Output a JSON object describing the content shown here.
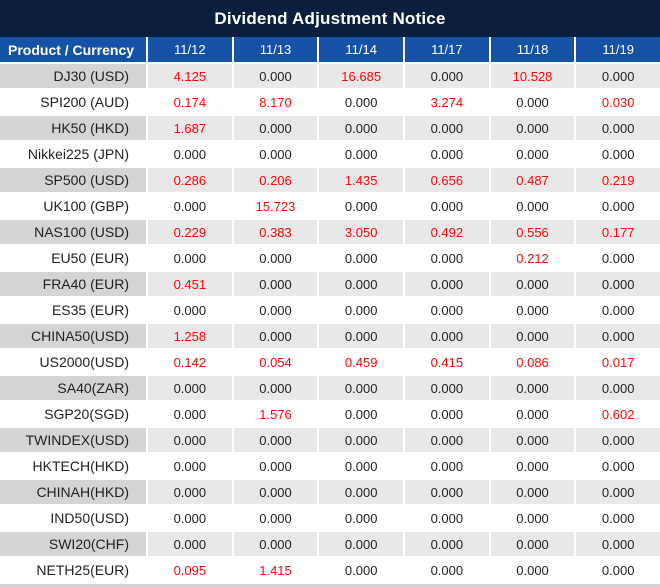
{
  "title": "Dividend Adjustment Notice",
  "columns": [
    "Product / Currency",
    "11/12",
    "11/13",
    "11/14",
    "11/17",
    "11/18",
    "11/19"
  ],
  "rows": [
    {
      "product": "DJ30 (USD)",
      "values": [
        "4.125",
        "0.000",
        "16.685",
        "0.000",
        "10.528",
        "0.000"
      ]
    },
    {
      "product": "SPI200 (AUD)",
      "values": [
        "0.174",
        "8.170",
        "0.000",
        "3.274",
        "0.000",
        "0.030"
      ]
    },
    {
      "product": "HK50 (HKD)",
      "values": [
        "1.687",
        "0.000",
        "0.000",
        "0.000",
        "0.000",
        "0.000"
      ]
    },
    {
      "product": "Nikkei225 (JPN)",
      "values": [
        "0.000",
        "0.000",
        "0.000",
        "0.000",
        "0.000",
        "0.000"
      ]
    },
    {
      "product": "SP500 (USD)",
      "values": [
        "0.286",
        "0.206",
        "1.435",
        "0.656",
        "0.487",
        "0.219"
      ]
    },
    {
      "product": "UK100 (GBP)",
      "values": [
        "0.000",
        "15.723",
        "0.000",
        "0.000",
        "0.000",
        "0.000"
      ]
    },
    {
      "product": "NAS100 (USD)",
      "values": [
        "0.229",
        "0.383",
        "3.050",
        "0.492",
        "0.556",
        "0.177"
      ]
    },
    {
      "product": "EU50 (EUR)",
      "values": [
        "0.000",
        "0.000",
        "0.000",
        "0.000",
        "0.212",
        "0.000"
      ]
    },
    {
      "product": "FRA40 (EUR)",
      "values": [
        "0.451",
        "0.000",
        "0.000",
        "0.000",
        "0.000",
        "0.000"
      ]
    },
    {
      "product": "ES35 (EUR)",
      "values": [
        "0.000",
        "0.000",
        "0.000",
        "0.000",
        "0.000",
        "0.000"
      ]
    },
    {
      "product": "CHINA50(USD)",
      "values": [
        "1.258",
        "0.000",
        "0.000",
        "0.000",
        "0.000",
        "0.000"
      ]
    },
    {
      "product": "US2000(USD)",
      "values": [
        "0.142",
        "0.054",
        "0.459",
        "0.415",
        "0.086",
        "0.017"
      ]
    },
    {
      "product": "SA40(ZAR)",
      "values": [
        "0.000",
        "0.000",
        "0.000",
        "0.000",
        "0.000",
        "0.000"
      ]
    },
    {
      "product": "SGP20(SGD)",
      "values": [
        "0.000",
        "1.576",
        "0.000",
        "0.000",
        "0.000",
        "0.602"
      ]
    },
    {
      "product": "TWINDEX(USD)",
      "values": [
        "0.000",
        "0.000",
        "0.000",
        "0.000",
        "0.000",
        "0.000"
      ]
    },
    {
      "product": "HKTECH(HKD)",
      "values": [
        "0.000",
        "0.000",
        "0.000",
        "0.000",
        "0.000",
        "0.000"
      ]
    },
    {
      "product": "CHINAH(HKD)",
      "values": [
        "0.000",
        "0.000",
        "0.000",
        "0.000",
        "0.000",
        "0.000"
      ]
    },
    {
      "product": "IND50(USD)",
      "values": [
        "0.000",
        "0.000",
        "0.000",
        "0.000",
        "0.000",
        "0.000"
      ]
    },
    {
      "product": "SWI20(CHF)",
      "values": [
        "0.000",
        "0.000",
        "0.000",
        "0.000",
        "0.000",
        "0.000"
      ]
    },
    {
      "product": "NETH25(EUR)",
      "values": [
        "0.095",
        "1.415",
        "0.000",
        "0.000",
        "0.000",
        "0.000"
      ]
    }
  ],
  "colors": {
    "title_bar_bg": "#0c1e3d",
    "header_bg": "#1552a6",
    "stripe_product_bg": "#d4d4d4",
    "stripe_value_bg": "#e9e8e8",
    "zero_value_color": "#1f1f1f",
    "nonzero_value_color": "#fb0606"
  }
}
